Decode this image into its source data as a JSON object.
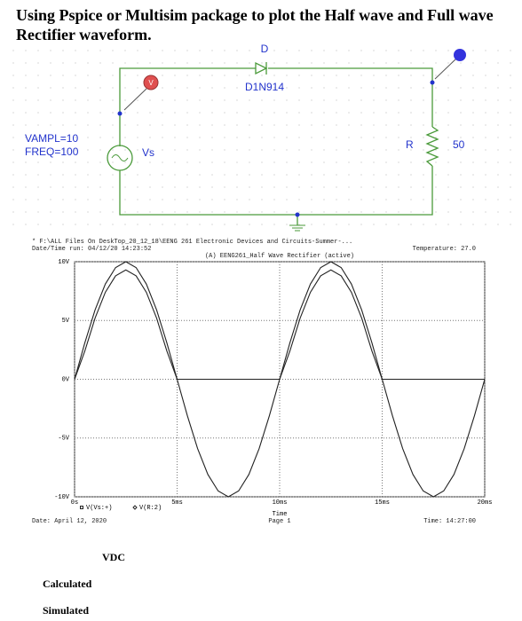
{
  "header": {
    "title": "Using Pspice or Multisim package to plot the Half wave and Full wave Rectifier waveform."
  },
  "schematic": {
    "diode_ref": "D",
    "diode_model": "D1N914",
    "probe": "V",
    "source_params": [
      "VAMPL=10",
      "FREQ=100"
    ],
    "source_name": "Vs",
    "resistor_ref": "R",
    "resistor_value": "50"
  },
  "probe_header": {
    "file": "* F:\\ALL Files On DeskTop_20_12_18\\EENG 261 Electronic Devices and Circuits-Summer-...",
    "run": "Date/Time run: 04/12/20 14:23:52",
    "temperature": "Temperature: 27.0",
    "plot_title": "(A) EENG261_Half Wave Rectifier (active)"
  },
  "chart_data": {
    "type": "line",
    "x_label": "Time",
    "x": [
      0,
      0.5,
      1,
      1.5,
      2,
      2.5,
      3,
      3.5,
      4,
      4.5,
      5,
      5.5,
      6,
      6.5,
      7,
      7.5,
      8,
      8.5,
      9,
      9.5,
      10,
      10.5,
      11,
      11.5,
      12,
      12.5,
      13,
      13.5,
      14,
      14.5,
      15,
      15.5,
      16,
      16.5,
      17,
      17.5,
      18,
      18.5,
      19,
      19.5,
      20
    ],
    "series": [
      {
        "name": "V(Vs:+)",
        "color": "#222222",
        "marker": "square",
        "values": [
          0,
          3.1,
          5.9,
          8.1,
          9.5,
          10,
          9.5,
          8.1,
          5.9,
          3.1,
          0,
          -3.1,
          -5.9,
          -8.1,
          -9.5,
          -10,
          -9.5,
          -8.1,
          -5.9,
          -3.1,
          0,
          3.1,
          5.9,
          8.1,
          9.5,
          10,
          9.5,
          8.1,
          5.9,
          3.1,
          0,
          -3.1,
          -5.9,
          -8.1,
          -9.5,
          -10,
          -9.5,
          -8.1,
          -5.9,
          -3.1,
          0
        ]
      },
      {
        "name": "V(R:2)",
        "color": "#222222",
        "marker": "diamond",
        "values": [
          0,
          2.4,
          5.2,
          7.4,
          8.8,
          9.3,
          8.8,
          7.4,
          5.2,
          2.4,
          0,
          0,
          0,
          0,
          0,
          0,
          0,
          0,
          0,
          0,
          0,
          2.4,
          5.2,
          7.4,
          8.8,
          9.3,
          8.8,
          7.4,
          5.2,
          2.4,
          0,
          0,
          0,
          0,
          0,
          0,
          0,
          0,
          0,
          0,
          0
        ]
      }
    ],
    "xlim": [
      0,
      20
    ],
    "ylim": [
      -10,
      10
    ],
    "xticks": [
      {
        "value": 0,
        "label": "0s"
      },
      {
        "value": 5,
        "label": "5ms"
      },
      {
        "value": 10,
        "label": "10ms"
      },
      {
        "value": 15,
        "label": "15ms"
      },
      {
        "value": 20,
        "label": "20ms"
      }
    ],
    "yticks": [
      {
        "value": -10,
        "label": "-10V"
      },
      {
        "value": -5,
        "label": "-5V"
      },
      {
        "value": 0,
        "label": "0V"
      },
      {
        "value": 5,
        "label": "5V"
      },
      {
        "value": 10,
        "label": "10V"
      }
    ],
    "grid": true
  },
  "probe_footer": {
    "date": "Date: April 12, 2020",
    "page": "Page 1",
    "time": "Time: 14:27:00"
  },
  "table": {
    "column": "VDC",
    "rows": [
      "Calculated",
      "Simulated"
    ]
  }
}
